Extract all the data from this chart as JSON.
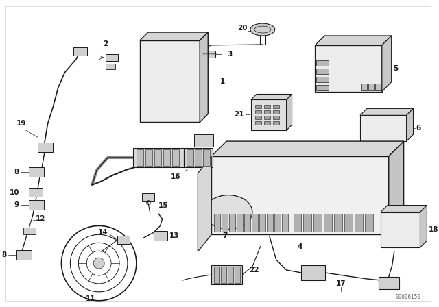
{
  "bg_color": "#ffffff",
  "line_color": "#1a1a1a",
  "fig_width": 6.4,
  "fig_height": 4.48,
  "dpi": 100,
  "watermark": "00006150",
  "title_border_color": "#aaaaaa",
  "gray_fill": "#e8e8e8",
  "dark_gray": "#c0c0c0",
  "mid_gray": "#d0d0d0"
}
